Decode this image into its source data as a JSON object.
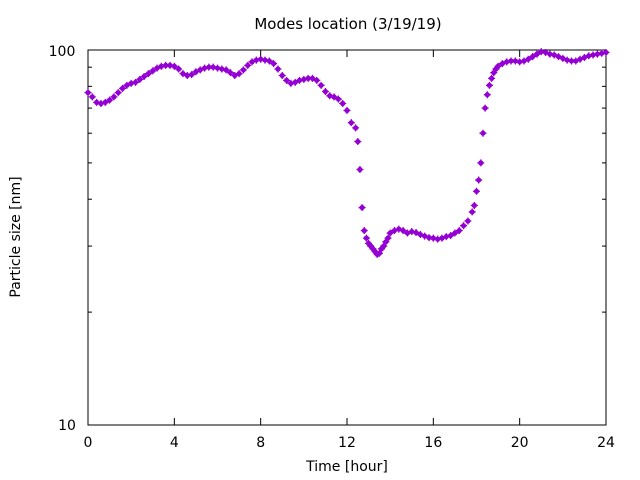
{
  "chart_data": {
    "type": "scatter",
    "title": "Modes location (3/19/19)",
    "xlabel": "Time [hour]",
    "ylabel": "Particle size [nm]",
    "xlim": [
      0,
      24
    ],
    "ylim": [
      10,
      100
    ],
    "yscale": "log",
    "x_ticks": [
      0,
      4,
      8,
      12,
      16,
      20,
      24
    ],
    "x_tick_labels": [
      "0",
      "4",
      "8",
      "12",
      "16",
      "20",
      "24"
    ],
    "y_tick_labels": [
      "10",
      "100"
    ],
    "grid": false,
    "marker_color": "#9400d3",
    "series": [
      {
        "x": [
          0.0,
          0.2,
          0.4,
          0.6,
          0.8,
          1.0,
          1.2,
          1.4,
          1.6,
          1.8,
          2.0,
          2.2,
          2.4,
          2.6,
          2.8,
          3.0,
          3.2,
          3.4,
          3.6,
          3.8,
          4.0,
          4.2,
          4.4,
          4.6,
          4.8,
          5.0,
          5.2,
          5.4,
          5.6,
          5.8,
          6.0,
          6.2,
          6.4,
          6.6,
          6.8,
          7.0,
          7.2,
          7.4,
          7.6,
          7.8,
          8.0,
          8.2,
          8.4,
          8.6,
          8.8,
          9.0,
          9.2,
          9.4,
          9.6,
          9.8,
          10.0,
          10.2,
          10.4,
          10.6,
          10.8,
          11.0,
          11.2,
          11.4,
          11.6,
          11.8,
          12.0,
          12.2,
          12.4,
          12.5,
          12.6,
          12.7,
          12.8,
          12.9,
          13.0,
          13.1,
          13.2,
          13.3,
          13.4,
          13.5,
          13.6,
          13.7,
          13.8,
          13.9,
          14.0,
          14.2,
          14.4,
          14.6,
          14.8,
          15.0,
          15.2,
          15.4,
          15.6,
          15.8,
          16.0,
          16.2,
          16.4,
          16.6,
          16.8,
          17.0,
          17.2,
          17.4,
          17.6,
          17.8,
          17.9,
          18.0,
          18.1,
          18.2,
          18.3,
          18.4,
          18.5,
          18.6,
          18.7,
          18.8,
          18.9,
          19.0,
          19.2,
          19.4,
          19.6,
          19.8,
          20.0,
          20.2,
          20.4,
          20.6,
          20.8,
          21.0,
          21.2,
          21.4,
          21.6,
          21.8,
          22.0,
          22.2,
          22.4,
          22.6,
          22.8,
          23.0,
          23.2,
          23.4,
          23.6,
          23.8,
          24.0
        ],
        "y": [
          77.0,
          75.0,
          72.5,
          72.0,
          72.5,
          73.5,
          75.0,
          77.0,
          79.0,
          80.5,
          81.5,
          82.0,
          83.5,
          85.0,
          86.5,
          88.0,
          89.5,
          90.5,
          91.0,
          91.0,
          90.5,
          89.0,
          86.5,
          85.5,
          86.0,
          87.5,
          88.5,
          89.5,
          90.0,
          90.0,
          89.5,
          89.0,
          88.5,
          87.0,
          85.5,
          86.5,
          88.5,
          91.0,
          93.0,
          94.0,
          94.5,
          94.0,
          93.5,
          92.0,
          89.0,
          85.5,
          83.0,
          81.5,
          82.0,
          83.0,
          83.5,
          84.0,
          84.0,
          83.0,
          80.5,
          77.5,
          75.5,
          75.0,
          74.0,
          72.0,
          69.0,
          64.0,
          62.0,
          57.0,
          48.0,
          38.0,
          33.0,
          31.5,
          30.5,
          30.0,
          29.5,
          29.0,
          28.5,
          28.7,
          29.5,
          30.0,
          30.8,
          31.5,
          32.5,
          33.0,
          33.3,
          33.0,
          32.5,
          32.8,
          32.6,
          32.2,
          31.9,
          31.6,
          31.5,
          31.3,
          31.5,
          31.8,
          32.0,
          32.5,
          33.0,
          34.0,
          35.0,
          37.0,
          38.5,
          42.0,
          45.0,
          50.0,
          60.0,
          70.0,
          76.0,
          80.5,
          84.0,
          87.0,
          89.0,
          90.5,
          92.0,
          93.0,
          93.5,
          93.5,
          93.0,
          93.5,
          94.5,
          96.0,
          97.5,
          99.0,
          98.5,
          97.5,
          97.0,
          96.0,
          95.0,
          94.0,
          93.5,
          93.5,
          94.5,
          95.5,
          96.5,
          97.0,
          97.5,
          98.0,
          98.5
        ]
      }
    ]
  }
}
